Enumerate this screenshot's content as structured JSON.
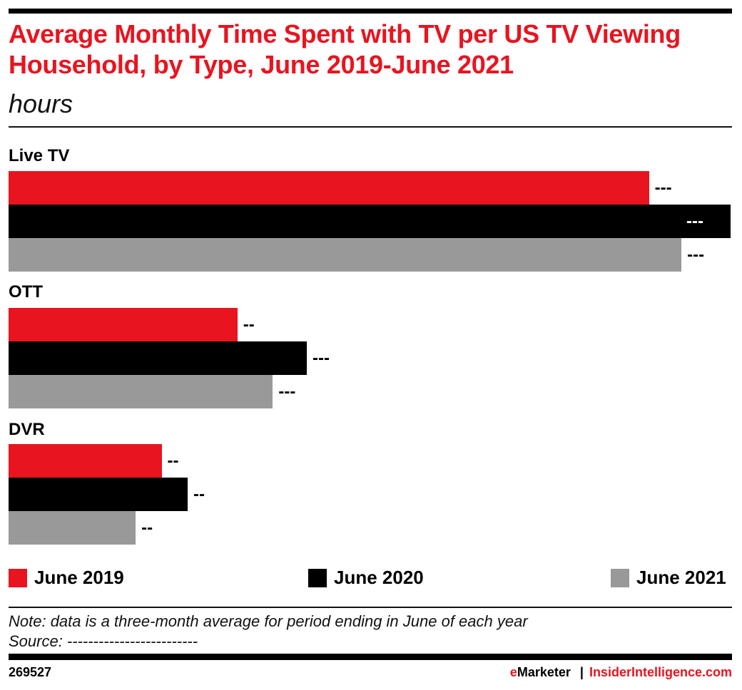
{
  "title": "Average Monthly Time Spent with TV per US TV Viewing Household, by Type, June 2019-June 2021",
  "subtitle": "hours",
  "chart_data": {
    "type": "bar",
    "orientation": "horizontal",
    "categories": [
      "Live TV",
      "OTT",
      "DVR"
    ],
    "series": [
      {
        "name": "June 2019",
        "color": "#e8141f",
        "values": [
          88.7,
          31.7,
          21.2
        ],
        "labels": [
          "---",
          "--",
          "--"
        ]
      },
      {
        "name": "June 2020",
        "color": "#000000",
        "values": [
          100,
          41.3,
          24.8
        ],
        "labels": [
          "---",
          "---",
          "--"
        ]
      },
      {
        "name": "June 2021",
        "color": "#999999",
        "values": [
          93.2,
          36.6,
          17.6
        ],
        "labels": [
          "---",
          "---",
          "--"
        ]
      }
    ],
    "xlim": [
      0,
      100
    ],
    "grid": false,
    "legend": "bottom"
  },
  "note": "Note: data is a three-month average for period ending in June of each year",
  "source": "Source: -------------------------",
  "footer": {
    "id": "269527",
    "brand_e": "e",
    "brand_rest": "Marketer",
    "sep": "|",
    "site": "InsiderIntelligence.com"
  }
}
